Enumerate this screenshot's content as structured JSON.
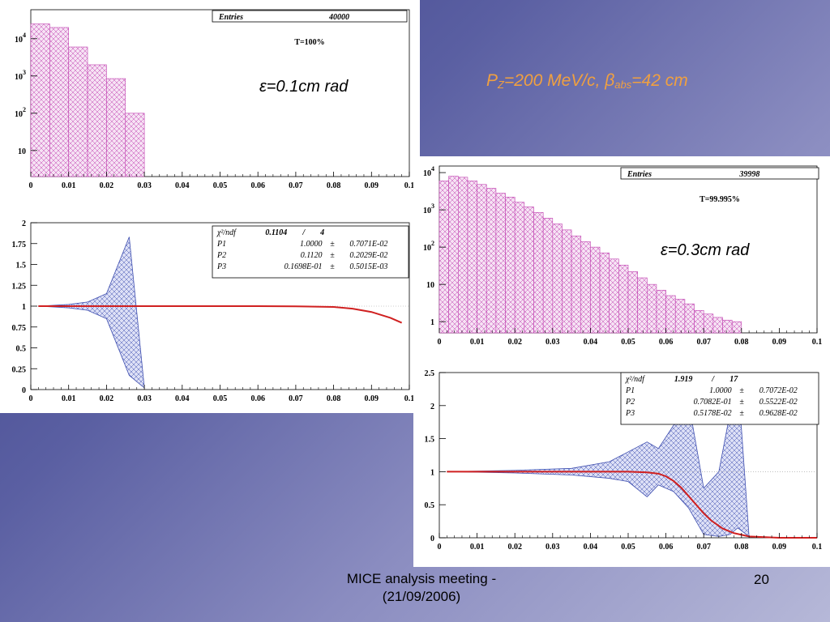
{
  "title": {
    "p": "P",
    "p_sub": "Z",
    "mid": "=200 MeV/c, ",
    "beta": "β",
    "beta_sub": "abs",
    "end": "=42 cm"
  },
  "footer": {
    "line1": "MICE analysis meeting -",
    "line2": "(21/09/2006)",
    "page": "20"
  },
  "labels": {
    "eps1": "ε=0.1cm rad",
    "eps2": "ε=0.3cm rad"
  },
  "colors": {
    "hist_fill": "#f6e2f4",
    "hist_line": "#c040b0",
    "band_fill": "#dde0f6",
    "band_line": "#4050b0",
    "fit_line": "#d02020"
  },
  "chart_data": [
    {
      "type": "bar",
      "log_y": true,
      "x": [
        0.0,
        0.005,
        0.01,
        0.015,
        0.02,
        0.025
      ],
      "values": [
        25000,
        20000,
        6000,
        2000,
        850,
        100
      ],
      "xlim": [
        0,
        0.1
      ],
      "ylim": [
        2,
        60000
      ],
      "xticks": [
        "0",
        "0.01",
        "0.02",
        "0.03",
        "0.04",
        "0.05",
        "0.06",
        "0.07",
        "0.08",
        "0.09",
        "0.1"
      ],
      "yticks": [
        {
          "v": 10,
          "t": "10"
        },
        {
          "v": 100,
          "t": "10 2"
        },
        {
          "v": 1000,
          "t": "10 3"
        },
        {
          "v": 10000,
          "t": "10 4"
        }
      ],
      "stats": {
        "entries_label": "Entries",
        "entries": "40000",
        "transmission": "T=100%"
      }
    },
    {
      "type": "line",
      "fit": {
        "x": [
          0.002,
          0.02,
          0.04,
          0.06,
          0.07,
          0.08,
          0.085,
          0.09,
          0.095,
          0.098
        ],
        "y": [
          1.0,
          1.0,
          1.0,
          1.0,
          0.998,
          0.99,
          0.97,
          0.93,
          0.86,
          0.8
        ]
      },
      "band_upper": {
        "x": [
          0.002,
          0.01,
          0.015,
          0.02,
          0.026,
          0.03
        ],
        "y": [
          1.0,
          1.02,
          1.05,
          1.15,
          1.83,
          0.02
        ]
      },
      "band_lower": {
        "x": [
          0.002,
          0.01,
          0.015,
          0.02,
          0.026,
          0.03
        ],
        "y": [
          1.0,
          0.98,
          0.95,
          0.85,
          0.17,
          0.02
        ]
      },
      "xlim": [
        0,
        0.1
      ],
      "ylim": [
        0,
        2
      ],
      "xticks": [
        "0",
        "0.01",
        "0.02",
        "0.03",
        "0.04",
        "0.05",
        "0.06",
        "0.07",
        "0.08",
        "0.09",
        "0.1"
      ],
      "yticks": [
        "0",
        "0.25",
        "0.5",
        "0.75",
        "1",
        "1.25",
        "1.5",
        "1.75",
        "2"
      ],
      "stats": {
        "chi_label": "χ²/ndf",
        "chi": "0.1104",
        "sep": "/",
        "ndf": "4",
        "params": [
          {
            "n": "P1",
            "v": "1.0000",
            "e": "0.7071E-02"
          },
          {
            "n": "P2",
            "v": "0.1120",
            "e": "0.2029E-02"
          },
          {
            "n": "P3",
            "v": "0.1698E-01",
            "e": "0.5015E-03"
          }
        ]
      }
    },
    {
      "type": "bar",
      "log_y": true,
      "x": [
        0.0,
        0.0025,
        0.005,
        0.0075,
        0.01,
        0.0125,
        0.015,
        0.0175,
        0.02,
        0.0225,
        0.025,
        0.0275,
        0.03,
        0.0325,
        0.035,
        0.0375,
        0.04,
        0.0425,
        0.045,
        0.0475,
        0.05,
        0.0525,
        0.055,
        0.0575,
        0.06,
        0.0625,
        0.065,
        0.0675,
        0.07,
        0.0725,
        0.075,
        0.0775
      ],
      "values": [
        6000,
        8000,
        7500,
        6000,
        4800,
        3800,
        2800,
        2200,
        1600,
        1200,
        850,
        600,
        420,
        290,
        200,
        140,
        100,
        70,
        48,
        33,
        22,
        15,
        10,
        7,
        5,
        4,
        3,
        2,
        1.6,
        1.3,
        1.1,
        1.0
      ],
      "xlim": [
        0,
        0.1
      ],
      "ylim": [
        0.5,
        15000
      ],
      "xticks": [
        "0",
        "0.01",
        "0.02",
        "0.03",
        "0.04",
        "0.05",
        "0.06",
        "0.07",
        "0.08",
        "0.09",
        "0.1"
      ],
      "yticks": [
        {
          "v": 1,
          "t": "1"
        },
        {
          "v": 10,
          "t": "10"
        },
        {
          "v": 100,
          "t": "10 2"
        },
        {
          "v": 1000,
          "t": "10 3"
        },
        {
          "v": 10000,
          "t": "10 4"
        }
      ],
      "stats": {
        "entries_label": "Entries",
        "entries": "39998",
        "transmission": "T=99.995%"
      }
    },
    {
      "type": "line",
      "fit": {
        "x": [
          0.002,
          0.03,
          0.05,
          0.055,
          0.058,
          0.06,
          0.062,
          0.064,
          0.066,
          0.068,
          0.07,
          0.072,
          0.075,
          0.078,
          0.082,
          0.09,
          0.1
        ],
        "y": [
          1.0,
          1.0,
          1.0,
          0.99,
          0.97,
          0.93,
          0.86,
          0.76,
          0.63,
          0.5,
          0.37,
          0.26,
          0.14,
          0.07,
          0.02,
          0.0,
          0.0
        ]
      },
      "band_upper": {
        "x": [
          0.002,
          0.02,
          0.035,
          0.045,
          0.05,
          0.055,
          0.058,
          0.062,
          0.066,
          0.07,
          0.074,
          0.077,
          0.079,
          0.082
        ],
        "y": [
          1.0,
          1.02,
          1.05,
          1.15,
          1.3,
          1.45,
          1.35,
          1.7,
          2.05,
          0.75,
          1.0,
          1.9,
          2.45,
          0.02
        ]
      },
      "band_lower": {
        "x": [
          0.002,
          0.02,
          0.035,
          0.045,
          0.05,
          0.055,
          0.058,
          0.062,
          0.066,
          0.07,
          0.074,
          0.077,
          0.079,
          0.082
        ],
        "y": [
          1.0,
          0.98,
          0.95,
          0.9,
          0.85,
          0.62,
          0.8,
          0.7,
          0.45,
          0.05,
          0.02,
          0.05,
          0.15,
          0.02
        ]
      },
      "xlim": [
        0,
        0.1
      ],
      "ylim": [
        0,
        2.5
      ],
      "xticks": [
        "0",
        "0.01",
        "0.02",
        "0.03",
        "0.04",
        "0.05",
        "0.06",
        "0.07",
        "0.08",
        "0.09",
        "0.1"
      ],
      "yticks": [
        "0",
        "0.5",
        "1",
        "1.5",
        "2",
        "2.5"
      ],
      "stats": {
        "chi_label": "χ²/ndf",
        "chi": "1.919",
        "sep": "/",
        "ndf": "17",
        "params": [
          {
            "n": "P1",
            "v": "1.0000",
            "e": "0.7072E-02"
          },
          {
            "n": "P2",
            "v": "0.7082E-01",
            "e": "0.5522E-02"
          },
          {
            "n": "P3",
            "v": "0.5178E-02",
            "e": "0.9628E-02"
          }
        ]
      }
    }
  ]
}
